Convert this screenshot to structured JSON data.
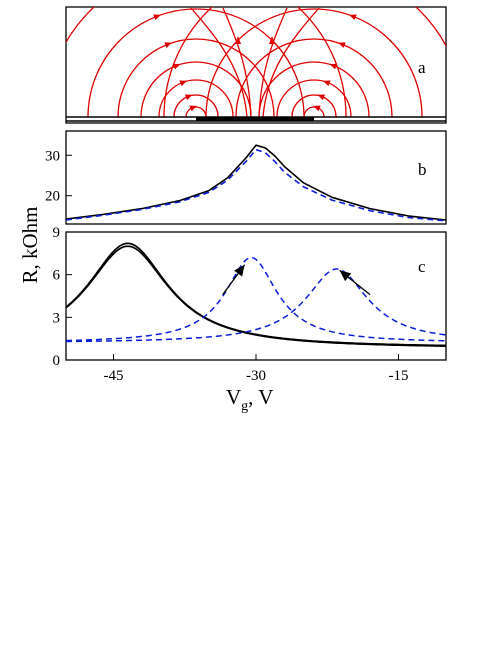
{
  "figure": {
    "ylabel": "R, kOhm",
    "xlabel_main": "V",
    "xlabel_sub": "g",
    "xlabel_tail": ", V"
  },
  "colors": {
    "field_lines": "#e00000",
    "solid": "#000000",
    "dashed": "#0a1fd6"
  },
  "chart_data": [
    {
      "type": "diagram",
      "panel": "a",
      "label": "a",
      "description_icon": "field-line-arcs-with-arrows"
    },
    {
      "type": "line",
      "panel": "b",
      "label": "b",
      "xlim": [
        -50,
        -10
      ],
      "ylim": [
        13,
        36
      ],
      "yticks": [
        20,
        30
      ],
      "series": [
        {
          "style": "solid",
          "x": [
            -50,
            -46,
            -42,
            -38,
            -35,
            -33,
            -31,
            -30,
            -29,
            -28,
            -27,
            -25,
            -22,
            -18,
            -14,
            -10
          ],
          "y": [
            14.2,
            15.4,
            16.8,
            18.8,
            21.2,
            24.4,
            29.5,
            32.5,
            31.8,
            29.8,
            27.2,
            23.2,
            19.6,
            16.8,
            15.0,
            14.0
          ]
        },
        {
          "style": "dashed",
          "x": [
            -50,
            -46,
            -42,
            -38,
            -35,
            -33,
            -31,
            -30,
            -29,
            -28,
            -27,
            -25,
            -22,
            -18,
            -14,
            -10
          ],
          "y": [
            14.0,
            15.2,
            16.6,
            18.5,
            20.8,
            23.8,
            28.6,
            31.4,
            30.6,
            28.4,
            25.8,
            22.2,
            18.9,
            16.3,
            14.6,
            13.8
          ]
        }
      ]
    },
    {
      "type": "line",
      "panel": "c",
      "label": "c",
      "xlim": [
        -50,
        -10
      ],
      "ylim": [
        0,
        9
      ],
      "yticks": [
        0,
        3,
        6,
        9
      ],
      "xticks": [
        -45,
        -30,
        -15
      ],
      "series": [
        {
          "style": "solid",
          "center": -43.5,
          "peak": 8.2,
          "width": 5.2,
          "base": 0.85
        },
        {
          "style": "solid",
          "center": -43.5,
          "peak": 8.0,
          "width": 5.3,
          "base": 0.8
        },
        {
          "style": "dashed",
          "center": -30.5,
          "peak": 7.2,
          "width": 3.3,
          "base": 1.2
        },
        {
          "style": "dashed",
          "center": -21.5,
          "peak": 6.4,
          "width": 4.0,
          "base": 1.2
        }
      ],
      "arrows": [
        {
          "from": [
            -33.5,
            4.6
          ],
          "to": [
            -31.2,
            6.7
          ]
        },
        {
          "from": [
            -18.0,
            4.6
          ],
          "to": [
            -21.2,
            6.3
          ]
        }
      ]
    }
  ]
}
